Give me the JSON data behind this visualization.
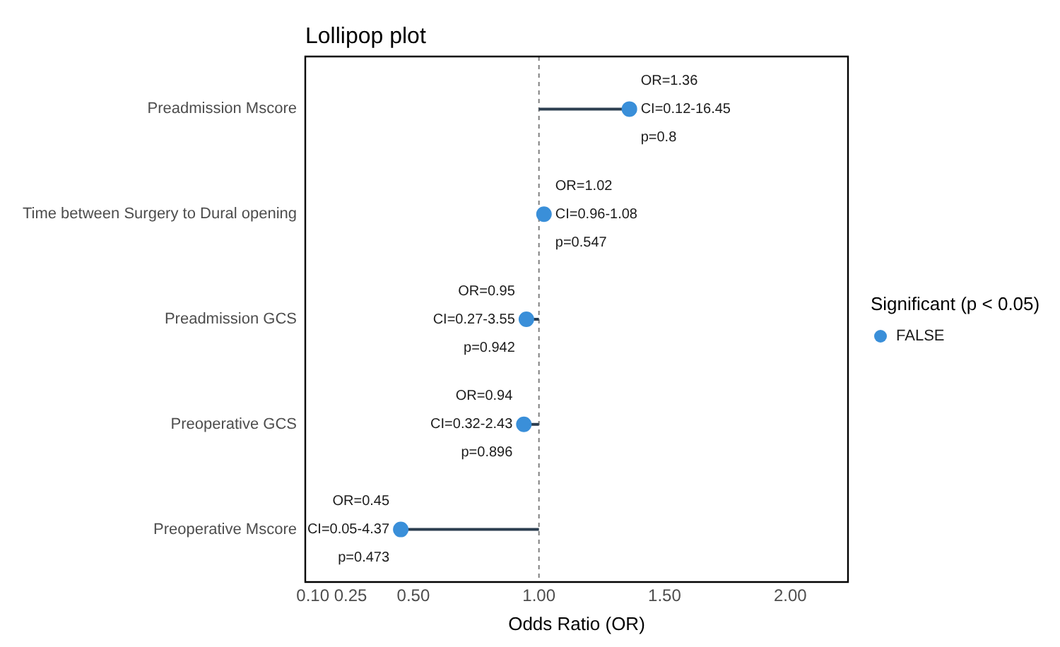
{
  "chart_data": {
    "type": "lollipop",
    "title": "Lollipop plot",
    "xlabel": "Odds Ratio (OR)",
    "legend_title": "Significant (p < 0.05)",
    "orientation": "horizontal",
    "categories": [
      "Preadmission Mscore",
      "Time between Surgery to Dural opening",
      "Preadmission GCS",
      "Preoperative GCS",
      "Preoperative Mscore"
    ],
    "series": [
      {
        "name": "FALSE",
        "color": "#3a8fd9",
        "values": [
          1.36,
          1.02,
          0.95,
          0.94,
          0.45
        ]
      }
    ],
    "xlim": [
      0.07,
      2.23
    ],
    "xticks": [
      {
        "value": 0.1,
        "label": "0.10"
      },
      {
        "value": 0.25,
        "label": "0.25"
      },
      {
        "value": 0.5,
        "label": "0.50"
      },
      {
        "value": 1,
        "label": "1.00"
      },
      {
        "value": 1.5,
        "label": "1.50"
      },
      {
        "value": 2,
        "label": "2.00"
      }
    ],
    "ref_lines": [
      {
        "axis": "x",
        "value": 1,
        "color": "#7f7f7f",
        "line_style": "dashed"
      }
    ],
    "annotations": [
      {
        "text": "OR=1.36\nCI=0.12-16.45\np=0.8",
        "x": 1.36,
        "y": "Preadmission Mscore"
      },
      {
        "text": "OR=1.02\nCI=0.96-1.08\np=0.547",
        "x": 1.02,
        "y": "Time between Surgery to Dural opening"
      },
      {
        "text": "OR=0.95\nCI=0.27-3.55\np=0.942",
        "x": 0.95,
        "y": "Preadmission GCS"
      },
      {
        "text": "OR=0.94\nCI=0.32-2.43\np=0.896",
        "x": 0.94,
        "y": "Preoperative GCS"
      },
      {
        "text": "OR=0.45\nCI=0.05-4.37\np=0.473",
        "x": 0.45,
        "y": "Preoperative Mscore"
      }
    ],
    "grid": false,
    "legend": "right",
    "marker": "circle"
  }
}
